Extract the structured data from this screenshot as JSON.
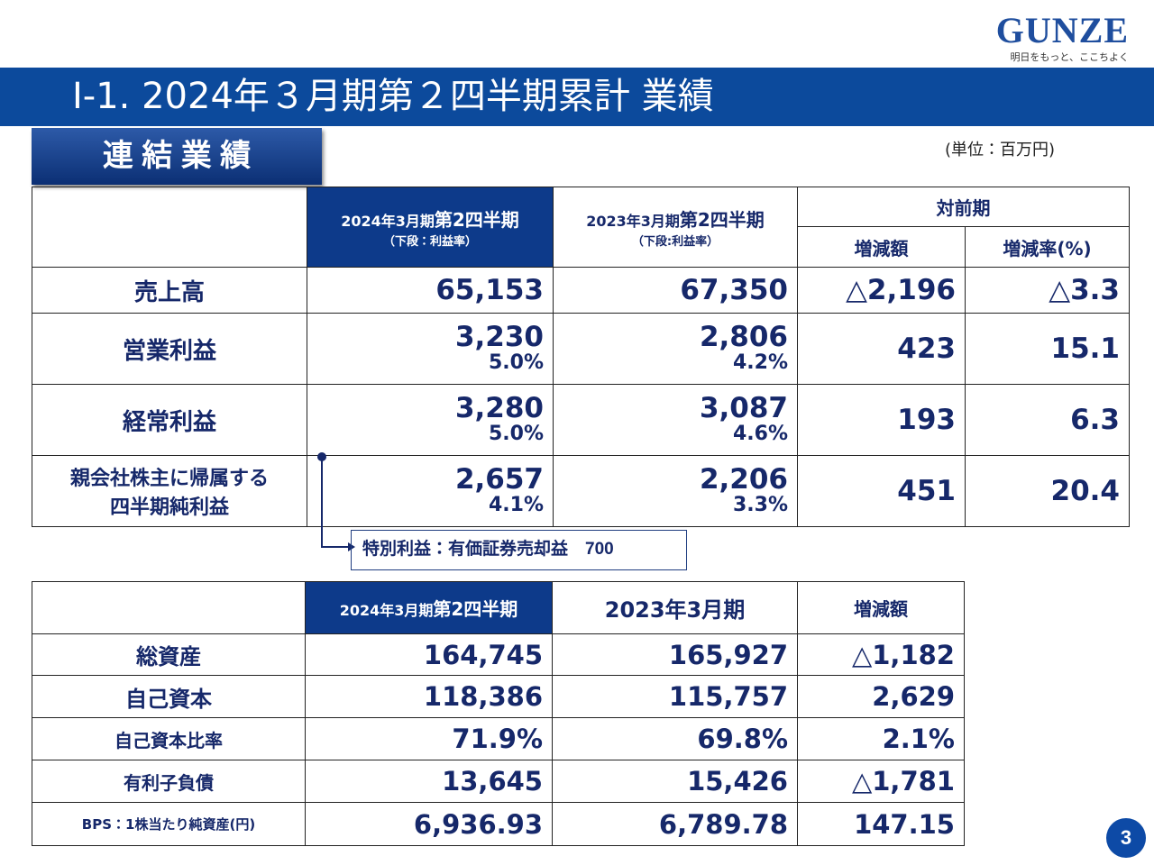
{
  "logo": {
    "name": "GUNZE",
    "tagline": "明日をもっと、ここちよく"
  },
  "header": {
    "title": "Ⅰ-1. 2024年３月期第２四半期累計 業績"
  },
  "section": "連 結 業 績",
  "unit": "(単位：百万円)",
  "table1": {
    "headers": {
      "current_a": "2024年3月期",
      "current_b": "第2四半期",
      "current_sub": "（下段：利益率）",
      "previous_a": "2023年3月期",
      "previous_b": "第2四半期",
      "previous_sub": "（下段:利益率）",
      "yoy": "対前期",
      "change": "増減額",
      "rate": "増減率(%)"
    },
    "rows": [
      {
        "label": [
          "売上高"
        ],
        "current": "65,153",
        "previous": "67,350",
        "change": "△2,196",
        "rate": "△3.3"
      },
      {
        "label": [
          "営業利益"
        ],
        "current": "3,230",
        "current_margin": "5.0%",
        "previous": "2,806",
        "previous_margin": "4.2%",
        "change": "423",
        "rate": "15.1"
      },
      {
        "label": [
          "経常利益"
        ],
        "current": "3,280",
        "current_margin": "5.0%",
        "previous": "3,087",
        "previous_margin": "4.6%",
        "change": "193",
        "rate": "6.3"
      },
      {
        "label": [
          "親会社株主に帰属する",
          "四半期純利益"
        ],
        "current": "2,657",
        "current_margin": "4.1%",
        "previous": "2,206",
        "previous_margin": "3.3%",
        "change": "451",
        "rate": "20.4"
      }
    ]
  },
  "note": "特別利益：有価証券売却益　700",
  "table2": {
    "headers": {
      "current_a": "2024年3月期",
      "current_b": "第2四半期",
      "previous": "2023年3月期",
      "change": "増減額"
    },
    "rows": [
      {
        "label": "総資産",
        "current": "164,745",
        "previous": "165,927",
        "change": "△1,182"
      },
      {
        "label": "自己資本",
        "current": "118,386",
        "previous": "115,757",
        "change": "2,629"
      },
      {
        "label": "自己資本比率",
        "current": "71.9%",
        "previous": "69.8%",
        "change": "2.1%"
      },
      {
        "label": "有利子負債",
        "current": "13,645",
        "previous": "15,426",
        "change": "△1,781"
      },
      {
        "label": "BPS：1株当たり純資産(円)",
        "current": "6,936.93",
        "previous": "6,789.78",
        "change": "147.15"
      }
    ]
  },
  "page": "3"
}
